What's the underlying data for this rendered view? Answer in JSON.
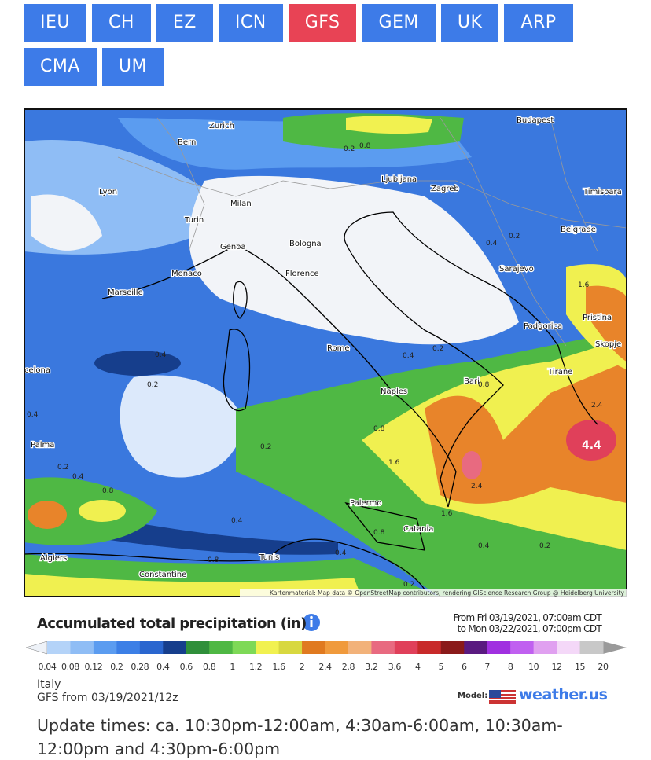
{
  "nav": {
    "buttons": [
      {
        "label": "IEU"
      },
      {
        "label": "CH"
      },
      {
        "label": "EZ"
      },
      {
        "label": "ICN"
      },
      {
        "label": "GFS",
        "selected": true
      },
      {
        "label": "GEM"
      },
      {
        "label": "UK"
      },
      {
        "label": "ARP"
      },
      {
        "label": "CMA"
      },
      {
        "label": "UM"
      }
    ]
  },
  "map": {
    "cities": [
      "Zurich",
      "Budapest",
      "Bern",
      "Ljubljana",
      "Zagreb",
      "Lyon",
      "Timisoara",
      "Milan",
      "Turin",
      "Belgrade",
      "Genoa",
      "Bologna",
      "Monaco",
      "Sarajevo",
      "Florence",
      "Marseille",
      "Pristina",
      "Podgorica",
      "Skopje",
      "Rome",
      "Tirane",
      "celona",
      "Bari",
      "Naples",
      "Palma",
      "Palermo",
      "Catania",
      "Algiers",
      "Tunis",
      "Constantine"
    ],
    "contours": [
      "0.2",
      "0.8",
      "0.4",
      "0.2",
      "1.6",
      "0.4",
      "0.2",
      "0.2",
      "0.4",
      "0.8",
      "2.4",
      "0.4",
      "4.4",
      "0.8",
      "0.2",
      "1.6",
      "0.2",
      "0.4",
      "0.8",
      "2.4",
      "1.6",
      "0.4",
      "0.8",
      "0.4",
      "0.2",
      "0.8",
      "0.4",
      "0.2"
    ],
    "attribution": "Kartenmaterial: Map data © OpenStreetMap contributors, rendering GIScience Research Group @ Heidelberg University"
  },
  "legend": {
    "title": "Accumulated total precipitation (in)",
    "period_from": "From Fri 03/19/2021, 07:00am CDT",
    "period_to": "to Mon 03/22/2021, 07:00pm CDT",
    "scale": [
      "0.04",
      "0.08",
      "0.12",
      "0.2",
      "0.28",
      "0.4",
      "0.6",
      "0.8",
      "1",
      "1.2",
      "1.6",
      "2",
      "2.4",
      "2.8",
      "3.2",
      "3.6",
      "4",
      "5",
      "6",
      "7",
      "8",
      "10",
      "12",
      "15",
      "20"
    ],
    "region": "Italy",
    "run": "GFS from 03/19/2021/12z",
    "model_label": "Model:",
    "logo": "weather.us"
  },
  "footer": {
    "update_times": "Update times: ca. 10:30pm-12:00am, 4:30am-6:00am, 10:30am-12:00pm and 4:30pm-6:00pm"
  }
}
